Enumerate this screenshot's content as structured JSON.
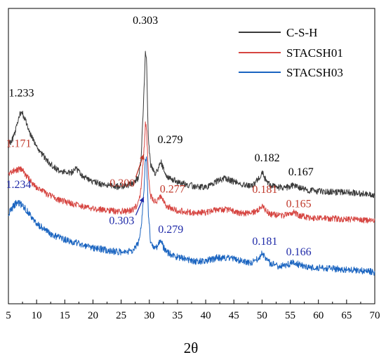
{
  "chart_data": {
    "type": "line",
    "xlabel": "2θ",
    "ylabel": "",
    "xlim": [
      5,
      70
    ],
    "x_ticks": [
      5,
      10,
      15,
      20,
      25,
      30,
      35,
      40,
      45,
      50,
      55,
      60,
      65,
      70
    ],
    "legend_position": "top-right",
    "series": [
      {
        "name": "C-S-H",
        "color": "#3a3a3a",
        "x": [
          5,
          6,
          7,
          7.5,
          8,
          9,
          10,
          12,
          14,
          16,
          17,
          18,
          20,
          22,
          24,
          26,
          27,
          28,
          28.5,
          29,
          29.3,
          29.5,
          29.8,
          30.2,
          31,
          31.5,
          32,
          32.5,
          33,
          35,
          38,
          40,
          42,
          43.5,
          45,
          47,
          48.5,
          49.5,
          50,
          50.5,
          51.5,
          53,
          55,
          55.5,
          56.5,
          58,
          60,
          62,
          65,
          67,
          69,
          70
        ],
        "y": [
          15.8,
          17.5,
          21.3,
          21.5,
          20.3,
          17.6,
          15.7,
          13.0,
          11.3,
          11.0,
          11.9,
          10.5,
          9.5,
          8.9,
          8.6,
          8.8,
          9.1,
          10.1,
          13,
          24,
          32.5,
          31,
          18,
          12.5,
          11,
          11.5,
          13.2,
          11.8,
          10.6,
          9.4,
          8.7,
          8.5,
          9.6,
          10.1,
          9.5,
          8.8,
          8.9,
          10.2,
          11.2,
          10.1,
          8.9,
          8.5,
          8.5,
          8.9,
          8.4,
          8.0,
          7.8,
          7.7,
          7.6,
          7.5,
          7.2,
          7.2
        ]
      },
      {
        "name": "STACSH01",
        "color": "#d64541",
        "x": [
          5,
          6,
          7,
          7.5,
          8,
          9,
          10,
          12,
          14,
          16,
          18,
          20,
          22,
          24,
          26,
          27,
          28,
          28.5,
          29,
          29.3,
          29.5,
          29.8,
          30.2,
          31,
          31.5,
          32,
          32.5,
          33,
          35,
          38,
          40,
          42,
          44,
          46,
          48,
          49.5,
          50,
          50.5,
          51.5,
          53,
          55,
          55.5,
          56.5,
          58,
          60,
          62,
          65,
          67,
          69,
          70
        ],
        "y": [
          11.0,
          11.4,
          11.7,
          11.6,
          10.8,
          9.5,
          8.5,
          7.2,
          6.3,
          5.7,
          5.2,
          4.8,
          4.5,
          4.3,
          4.3,
          4.5,
          5.5,
          8,
          14,
          19.5,
          19.0,
          11.5,
          7,
          5.9,
          6.1,
          6.9,
          6.0,
          5.2,
          4.4,
          4.0,
          4.1,
          4.6,
          4.6,
          4.0,
          3.9,
          4.6,
          5.4,
          4.6,
          3.8,
          3.5,
          3.7,
          4.1,
          3.6,
          3.2,
          3.0,
          3.0,
          2.9,
          2.8,
          2.6,
          2.5
        ]
      },
      {
        "name": "STACSH03",
        "color": "#1a64c0",
        "x": [
          5,
          6,
          6.5,
          7,
          7.5,
          8,
          9,
          10,
          12,
          14,
          16,
          18,
          20,
          22,
          24,
          26,
          27,
          28,
          28.5,
          29,
          29.3,
          29.5,
          29.8,
          30.2,
          31,
          31.5,
          32,
          32.5,
          33,
          35,
          38,
          40,
          42,
          44,
          46,
          48,
          49.5,
          50,
          50.5,
          51.5,
          53,
          55,
          55.5,
          56.5,
          58,
          60,
          62,
          65,
          67,
          69,
          70
        ],
        "y": [
          3.8,
          5.3,
          5.8,
          5.6,
          5.3,
          4.7,
          3.4,
          2.2,
          0.6,
          -0.4,
          -1.0,
          -1.6,
          -2.1,
          -2.5,
          -2.8,
          -2.9,
          -2.7,
          -1.5,
          1.0,
          7.0,
          13.8,
          13.5,
          4.5,
          -1.0,
          -2.2,
          -1.9,
          -0.9,
          -2.0,
          -2.9,
          -3.8,
          -4.5,
          -4.5,
          -3.9,
          -3.9,
          -4.4,
          -4.8,
          -3.9,
          -3.1,
          -3.9,
          -4.9,
          -5.4,
          -5.0,
          -4.6,
          -5.1,
          -5.5,
          -5.7,
          -5.8,
          -6.0,
          -6.1,
          -6.3,
          -6.4
        ]
      }
    ],
    "annotations": [
      {
        "text": "0.303",
        "x": 29.3,
        "y": 37.3,
        "color": "#000000"
      },
      {
        "text": "1.233",
        "x": 7.3,
        "y": 24.5,
        "color": "#000000"
      },
      {
        "text": "0.279",
        "x": 33.7,
        "y": 16.3,
        "color": "#000000"
      },
      {
        "text": "0.182",
        "x": 50.9,
        "y": 13.1,
        "color": "#000000"
      },
      {
        "text": "0.167",
        "x": 56.9,
        "y": 10.6,
        "color": "#000000"
      },
      {
        "text": "1.171",
        "x": 6.8,
        "y": 15.6,
        "color": "#c0392b"
      },
      {
        "text": "0.300",
        "x": 25.2,
        "y": 8.6,
        "color": "#c0392b"
      },
      {
        "text": "0.277",
        "x": 34.1,
        "y": 7.6,
        "color": "#c0392b"
      },
      {
        "text": "0.181",
        "x": 50.5,
        "y": 7.5,
        "color": "#c0392b"
      },
      {
        "text": "0.165",
        "x": 56.5,
        "y": 5.0,
        "color": "#c0392b"
      },
      {
        "text": "1.234",
        "x": 6.8,
        "y": 8.4,
        "color": "#1f2aa8"
      },
      {
        "text": "0.303",
        "x": 25.1,
        "y": 2.0,
        "color": "#1f2aa8"
      },
      {
        "text": "0.279",
        "x": 33.8,
        "y": 0.5,
        "color": "#1f2aa8"
      },
      {
        "text": "0.181",
        "x": 50.5,
        "y": -1.6,
        "color": "#1f2aa8"
      },
      {
        "text": "0.166",
        "x": 56.5,
        "y": -3.5,
        "color": "#1f2aa8"
      }
    ],
    "arrows": [
      {
        "from": [
          27.6,
          10.3
        ],
        "to": [
          29.0,
          14.3
        ],
        "color": "#c0392b"
      },
      {
        "from": [
          27.6,
          3.6
        ],
        "to": [
          29.0,
          6.8
        ],
        "color": "#1f2aa8"
      }
    ]
  }
}
